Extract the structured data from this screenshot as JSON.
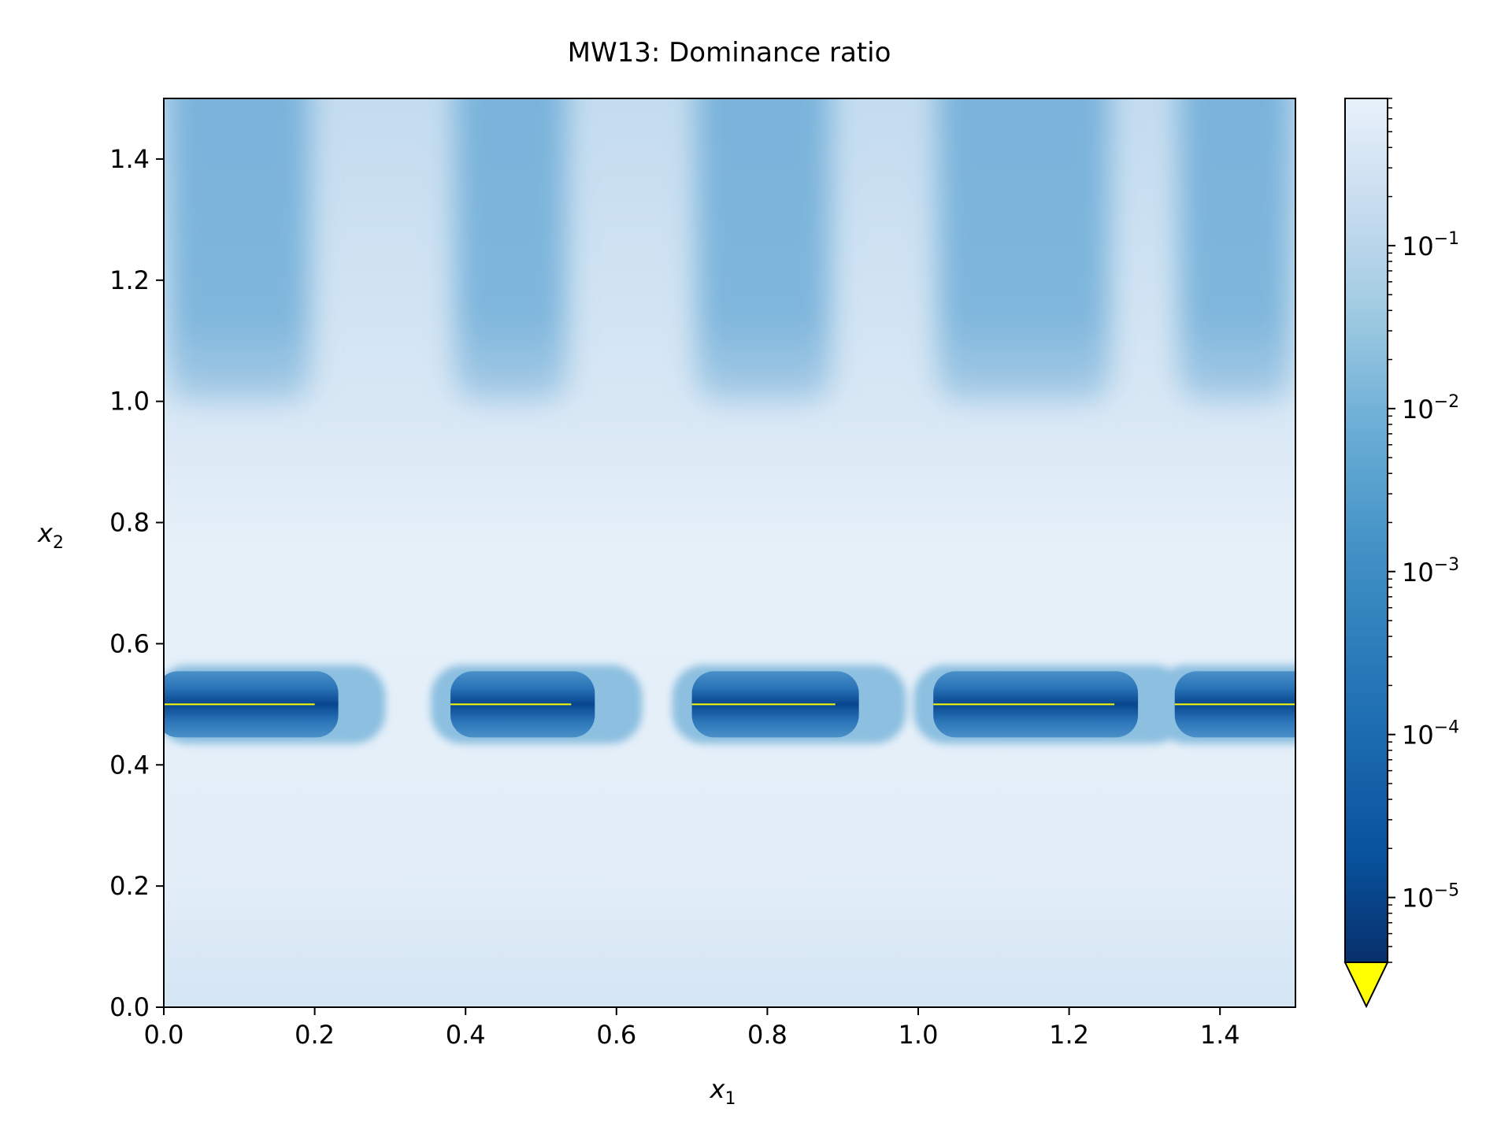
{
  "chart_data": {
    "type": "heatmap",
    "title": "MW13: Dominance ratio",
    "xlabel": "x",
    "xlabel_sub": "1",
    "ylabel": "x",
    "ylabel_sub": "2",
    "xlim": [
      0.0,
      1.5
    ],
    "ylim": [
      0.0,
      1.5
    ],
    "xticks": [
      "0.0",
      "0.2",
      "0.4",
      "0.6",
      "0.8",
      "1.0",
      "1.2",
      "1.4"
    ],
    "yticks": [
      "0.0",
      "0.2",
      "0.4",
      "0.6",
      "0.8",
      "1.0",
      "1.2",
      "1.4"
    ],
    "colorbar": {
      "scale": "log",
      "colormap": "Blues_r",
      "min": 4e-06,
      "max": 0.8,
      "extend": "min",
      "under_color": "#ffff00",
      "tick_labels": [
        {
          "base": "10",
          "exp": "−1",
          "value": 0.1
        },
        {
          "base": "10",
          "exp": "−2",
          "value": 0.01
        },
        {
          "base": "10",
          "exp": "−3",
          "value": 0.001
        },
        {
          "base": "10",
          "exp": "−4",
          "value": 0.0001
        },
        {
          "base": "10",
          "exp": "−5",
          "value": 1e-05
        }
      ]
    },
    "dominated_segments": {
      "x2": 0.5,
      "x1_ranges": [
        [
          0.0,
          0.2
        ],
        [
          0.38,
          0.54
        ],
        [
          0.7,
          0.89
        ],
        [
          1.02,
          1.26
        ],
        [
          1.34,
          1.5
        ]
      ],
      "line_color": "#ffff00"
    },
    "upper_columns": {
      "from_x2": 1.0,
      "x1_ranges": [
        [
          0.0,
          0.2
        ],
        [
          0.38,
          0.54
        ],
        [
          0.7,
          0.89
        ],
        [
          1.02,
          1.26
        ],
        [
          1.34,
          1.5
        ]
      ]
    },
    "colors": {
      "dark": "#08519c",
      "mid": "#6baed6",
      "light": "#deebf7",
      "lightest": "#e4eef8"
    }
  }
}
